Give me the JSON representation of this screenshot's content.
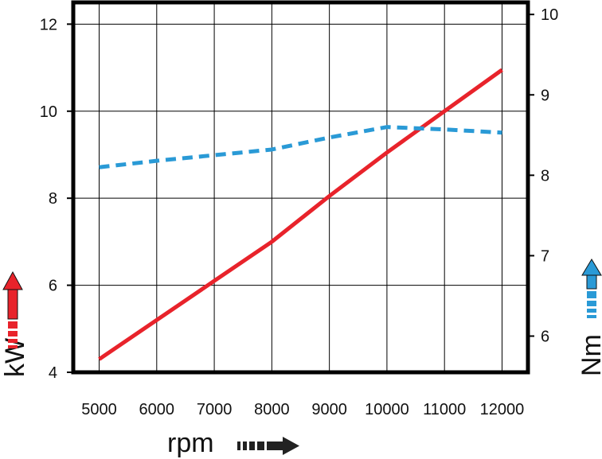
{
  "chart_data": {
    "type": "line",
    "x": [
      5000,
      6000,
      7000,
      8000,
      9000,
      10000,
      11000,
      12000
    ],
    "xlabel": "rpm",
    "xlim": [
      4550,
      12450
    ],
    "x_tick_labels": [
      "5000",
      "6000",
      "7000",
      "8000",
      "9000",
      "10000",
      "11000",
      "12000"
    ],
    "left_axis": {
      "label": "kW",
      "ylim": [
        4,
        12.5
      ],
      "tick_labels": [
        "4",
        "6",
        "8",
        "10",
        "12"
      ]
    },
    "right_axis": {
      "label": "Nm",
      "ylim": [
        5.55,
        10.15
      ],
      "tick_labels": [
        "6",
        "7",
        "8",
        "9",
        "10"
      ]
    },
    "series": [
      {
        "axis": "left",
        "color": "#e8232b",
        "style": "solid",
        "values": [
          4.3,
          5.2,
          6.1,
          7.0,
          8.05,
          9.05,
          10.0,
          10.95
        ]
      },
      {
        "axis": "right",
        "color": "#2a9ad6",
        "style": "dashed",
        "values": [
          8.1,
          8.18,
          8.25,
          8.32,
          8.47,
          8.6,
          8.57,
          8.53
        ]
      }
    ],
    "grid": true,
    "legend": "arrows beside axis titles",
    "colors": {
      "frame": "#000000",
      "grid": "#000000",
      "kw_arrow": "#e8232b",
      "nm_arrow": "#2a9ad6",
      "rpm_arrow": "#222222"
    }
  }
}
